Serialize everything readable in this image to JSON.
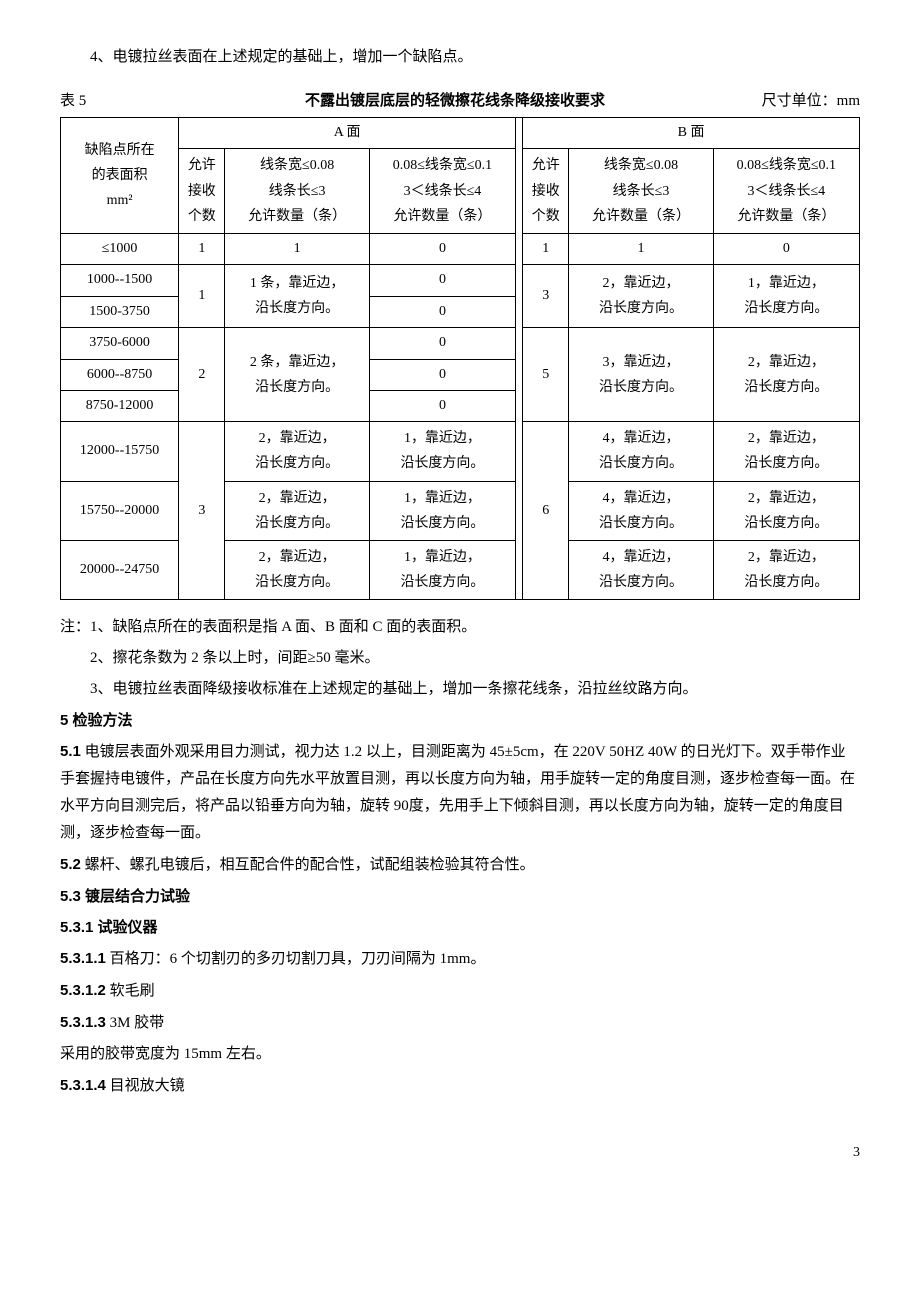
{
  "intro_note": "4、电镀拉丝表面在上述规定的基础上，增加一个缺陷点。",
  "table": {
    "label": "表 5",
    "title": "不露出镀层底层的轻微擦花线条降级接收要求",
    "unit": "尺寸单位：mm",
    "row_header": {
      "l1": "缺陷点所在",
      "l2": "的表面积",
      "l3": "mm²"
    },
    "face_a": "A 面",
    "face_b": "B 面",
    "col_allow": {
      "l1": "允许",
      "l2": "接收",
      "l3": "个数"
    },
    "col_w1": {
      "l1": "线条宽≤0.08",
      "l2": "线条长≤3",
      "l3": "允许数量（条）"
    },
    "col_w2": {
      "l1": "0.08≤线条宽≤0.1",
      "l2": "3＜线条长≤4",
      "l3": "允许数量（条）"
    },
    "rows": {
      "r1": {
        "area": "≤1000",
        "a_cnt": "1",
        "a_c1": "1",
        "a_c2": "0",
        "b_cnt": "1",
        "b_c1": "1",
        "b_c2": "0"
      },
      "r2": {
        "area": "1000--1500",
        "a_c2": "0"
      },
      "r3": {
        "area": "1500-3750",
        "a_c2": "0"
      },
      "g2": {
        "a_cnt": "1",
        "a_c1_l1": "1 条，靠近边，",
        "a_c1_l2": "沿长度方向。",
        "b_cnt": "3",
        "b_c1_l1": "2，靠近边，",
        "b_c1_l2": "沿长度方向。",
        "b_c2_l1": "1，靠近边，",
        "b_c2_l2": "沿长度方向。"
      },
      "r4": {
        "area": "3750-6000",
        "a_c2": "0"
      },
      "r5": {
        "area": "6000--8750",
        "a_c2": "0"
      },
      "r6": {
        "area": "8750-12000",
        "a_c2": "0"
      },
      "g3": {
        "a_cnt": "2",
        "a_c1_l1": "2 条，靠近边，",
        "a_c1_l2": "沿长度方向。",
        "b_cnt": "5",
        "b_c1_l1": "3，靠近边，",
        "b_c1_l2": "沿长度方向。",
        "b_c2_l1": "2，靠近边，",
        "b_c2_l2": "沿长度方向。"
      },
      "r7": {
        "area": "12000--15750",
        "a_c1_l1": "2，靠近边，",
        "a_c1_l2": "沿长度方向。",
        "a_c2_l1": "1，靠近边，",
        "a_c2_l2": "沿长度方向。",
        "b_c1_l1": "4，靠近边，",
        "b_c1_l2": "沿长度方向。",
        "b_c2_l1": "2，靠近边，",
        "b_c2_l2": "沿长度方向。"
      },
      "r8": {
        "area": "15750--20000",
        "a_c1_l1": "2，靠近边，",
        "a_c1_l2": "沿长度方向。",
        "a_c2_l1": "1，靠近边，",
        "a_c2_l2": "沿长度方向。",
        "b_c1_l1": "4，靠近边，",
        "b_c1_l2": "沿长度方向。",
        "b_c2_l1": "2，靠近边，",
        "b_c2_l2": "沿长度方向。"
      },
      "r9": {
        "area": "20000--24750",
        "a_c1_l1": "2，靠近边，",
        "a_c1_l2": "沿长度方向。",
        "a_c2_l1": "1，靠近边，",
        "a_c2_l2": "沿长度方向。",
        "b_c1_l1": "4，靠近边，",
        "b_c1_l2": "沿长度方向。",
        "b_c2_l1": "2，靠近边，",
        "b_c2_l2": "沿长度方向。"
      },
      "g4": {
        "a_cnt": "3",
        "b_cnt": "6"
      }
    }
  },
  "notes": {
    "n1": "注：1、缺陷点所在的表面积是指 A 面、B 面和 C 面的表面积。",
    "n2": "2、擦花条数为 2 条以上时，间距≥50 毫米。",
    "n3": "3、电镀拉丝表面降级接收标准在上述规定的基础上，增加一条擦花线条，沿拉丝纹路方向。"
  },
  "s5": {
    "h": "5 检验方法",
    "p51a": "5.1",
    "p51b": " 电镀层表面外观采用目力测试，视力达 1.2 以上，目测距离为 45±5cm，在 220V 50HZ 40W 的日光灯下。双手带作业手套握持电镀件，产品在长度方向先水平放置目测，再以长度方向为轴，用手旋转一定的角度目测，逐步检查每一面。在水平方向目测完后，将产品以铅垂方向为轴，旋转 90度，先用手上下倾斜目测，再以长度方向为轴，旋转一定的角度目测，逐步检查每一面。",
    "p52a": "5.2",
    "p52b": " 螺杆、螺孔电镀后，相互配合件的配合性，试配组装检验其符合性。",
    "h53": "5.3 镀层结合力试验",
    "h531": "5.3.1 试验仪器",
    "p5311a": "5.3.1.1",
    "p5311b": " 百格刀：6 个切割刃的多刃切割刀具，刀刃间隔为 1mm。",
    "p5312a": "5.3.1.2",
    "p5312b": " 软毛刷",
    "p5313a": "5.3.1.3",
    "p5313b": " 3M 胶带",
    "p5313c": "采用的胶带宽度为 15mm 左右。",
    "p5314a": "5.3.1.4",
    "p5314b": " 目视放大镜"
  },
  "page": "3"
}
